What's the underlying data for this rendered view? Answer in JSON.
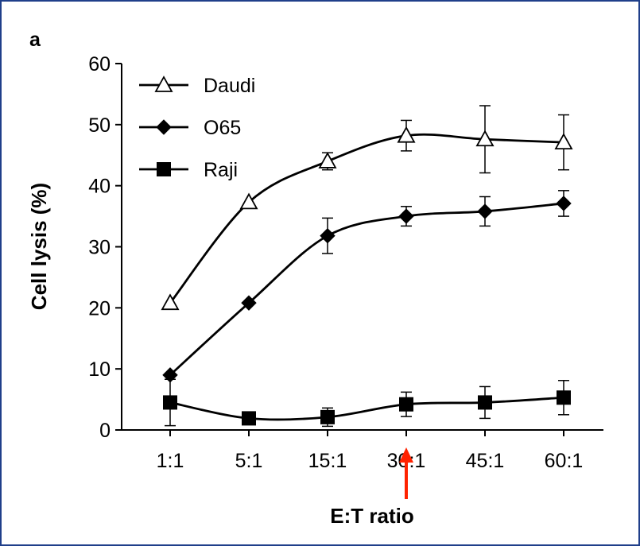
{
  "panel_label": "a",
  "chart_data": {
    "type": "line",
    "xlabel": "E:T ratio",
    "ylabel": "Cell lysis (%)",
    "categories": [
      "1:1",
      "5:1",
      "15:1",
      "30:1",
      "45:1",
      "60:1"
    ],
    "ylim": [
      0,
      60
    ],
    "yticks": [
      0,
      10,
      20,
      30,
      40,
      50,
      60
    ],
    "legend_position": "top-left",
    "series": [
      {
        "name": "Daudi",
        "marker": "open-triangle",
        "color": "#000000",
        "values": [
          20.8,
          37.3,
          44.0,
          48.2,
          47.6,
          47.1
        ],
        "errors": [
          0,
          0,
          1.4,
          2.5,
          5.5,
          4.5
        ]
      },
      {
        "name": "O65",
        "marker": "filled-diamond",
        "color": "#000000",
        "values": [
          9.0,
          20.8,
          31.8,
          35.0,
          35.8,
          37.1
        ],
        "errors": [
          0,
          0,
          2.9,
          1.6,
          2.4,
          2.1
        ]
      },
      {
        "name": "Raji",
        "marker": "filled-square",
        "color": "#000000",
        "values": [
          4.5,
          1.9,
          2.1,
          4.2,
          4.5,
          5.3
        ],
        "errors": [
          3.8,
          0,
          1.5,
          2.0,
          2.6,
          2.8
        ]
      }
    ],
    "annotations": [
      {
        "type": "arrow",
        "target_category": "30:1",
        "color": "#ff2200"
      }
    ]
  }
}
